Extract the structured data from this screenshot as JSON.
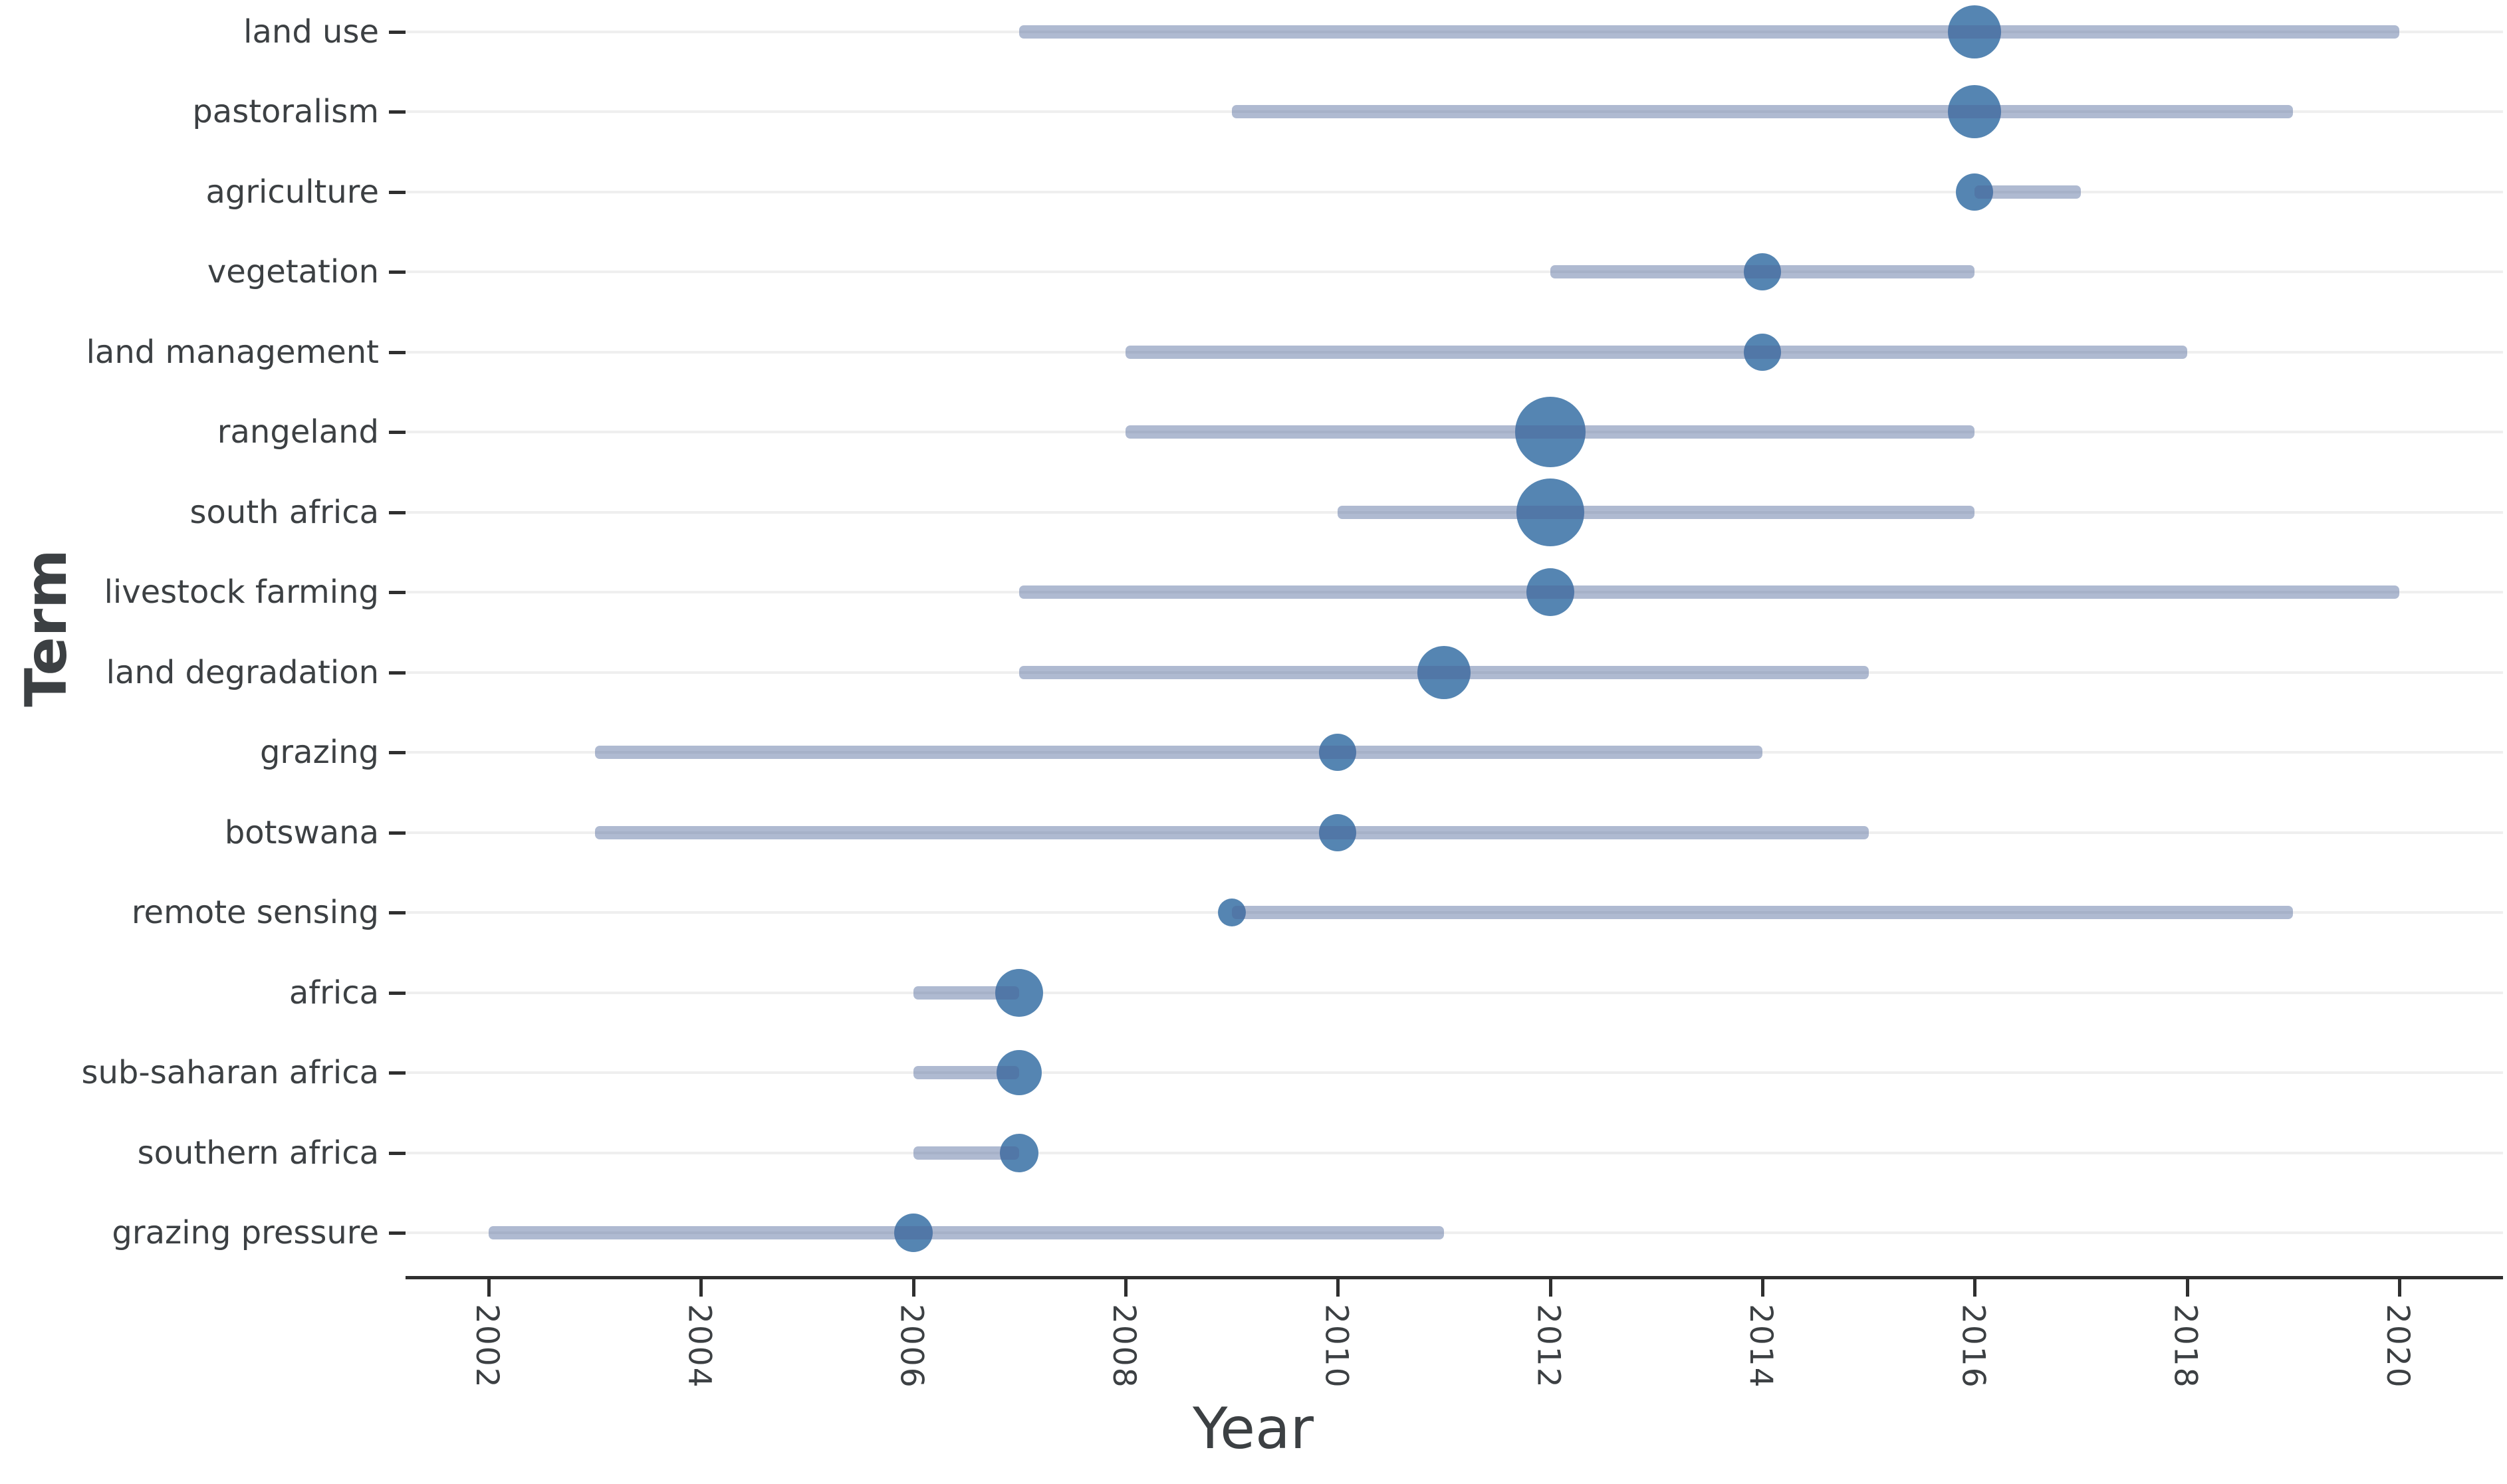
{
  "chart_data": {
    "type": "scatter",
    "subtype": "bubble-range-timeline",
    "title": "",
    "xlabel": "Year",
    "ylabel": "Term",
    "x_ticks": [
      2002,
      2004,
      2006,
      2008,
      2010,
      2012,
      2014,
      2016,
      2018,
      2020
    ],
    "xlim": [
      2001.2,
      2021.0
    ],
    "grid": "horizontal-only",
    "legend_position": "none",
    "series_description": "Each term has a horizontal line spanning first-to-last year of occurrence and a bubble at its peak year; bubble size reflects frequency (no legend shown).",
    "terms": [
      {
        "term": "land use",
        "start": 2007,
        "end": 2020,
        "peak": 2016,
        "bubble_radius_px": 40
      },
      {
        "term": "pastoralism",
        "start": 2009,
        "end": 2019,
        "peak": 2016,
        "bubble_radius_px": 40
      },
      {
        "term": "agriculture",
        "start": 2016,
        "end": 2017,
        "peak": 2016,
        "bubble_radius_px": 28
      },
      {
        "term": "vegetation",
        "start": 2012,
        "end": 2016,
        "peak": 2014,
        "bubble_radius_px": 28
      },
      {
        "term": "land management",
        "start": 2008,
        "end": 2018,
        "peak": 2014,
        "bubble_radius_px": 28
      },
      {
        "term": "rangeland",
        "start": 2008,
        "end": 2016,
        "peak": 2012,
        "bubble_radius_px": 53
      },
      {
        "term": "south africa",
        "start": 2010,
        "end": 2016,
        "peak": 2012,
        "bubble_radius_px": 51
      },
      {
        "term": "livestock farming",
        "start": 2007,
        "end": 2020,
        "peak": 2012,
        "bubble_radius_px": 36
      },
      {
        "term": "land degradation",
        "start": 2007,
        "end": 2015,
        "peak": 2011,
        "bubble_radius_px": 40
      },
      {
        "term": "grazing",
        "start": 2003,
        "end": 2014,
        "peak": 2010,
        "bubble_radius_px": 28
      },
      {
        "term": "botswana",
        "start": 2003,
        "end": 2015,
        "peak": 2010,
        "bubble_radius_px": 28
      },
      {
        "term": "remote sensing",
        "start": 2009,
        "end": 2019,
        "peak": 2009,
        "bubble_radius_px": 21
      },
      {
        "term": "africa",
        "start": 2006,
        "end": 2007,
        "peak": 2007,
        "bubble_radius_px": 36
      },
      {
        "term": "sub-saharan africa",
        "start": 2006,
        "end": 2007,
        "peak": 2007,
        "bubble_radius_px": 34
      },
      {
        "term": "southern africa",
        "start": 2006,
        "end": 2007,
        "peak": 2007,
        "bubble_radius_px": 29
      },
      {
        "term": "grazing pressure",
        "start": 2002,
        "end": 2011,
        "peak": 2006,
        "bubble_radius_px": 29
      }
    ]
  },
  "colors": {
    "bubble": "#5585b2",
    "range_line": "rgba(77,102,153,0.45)",
    "gridline": "#efefef",
    "axis": "#2f2f2f",
    "tick_text": "#3c4043",
    "title_text": "#3c4043",
    "background": "#ffffff"
  }
}
